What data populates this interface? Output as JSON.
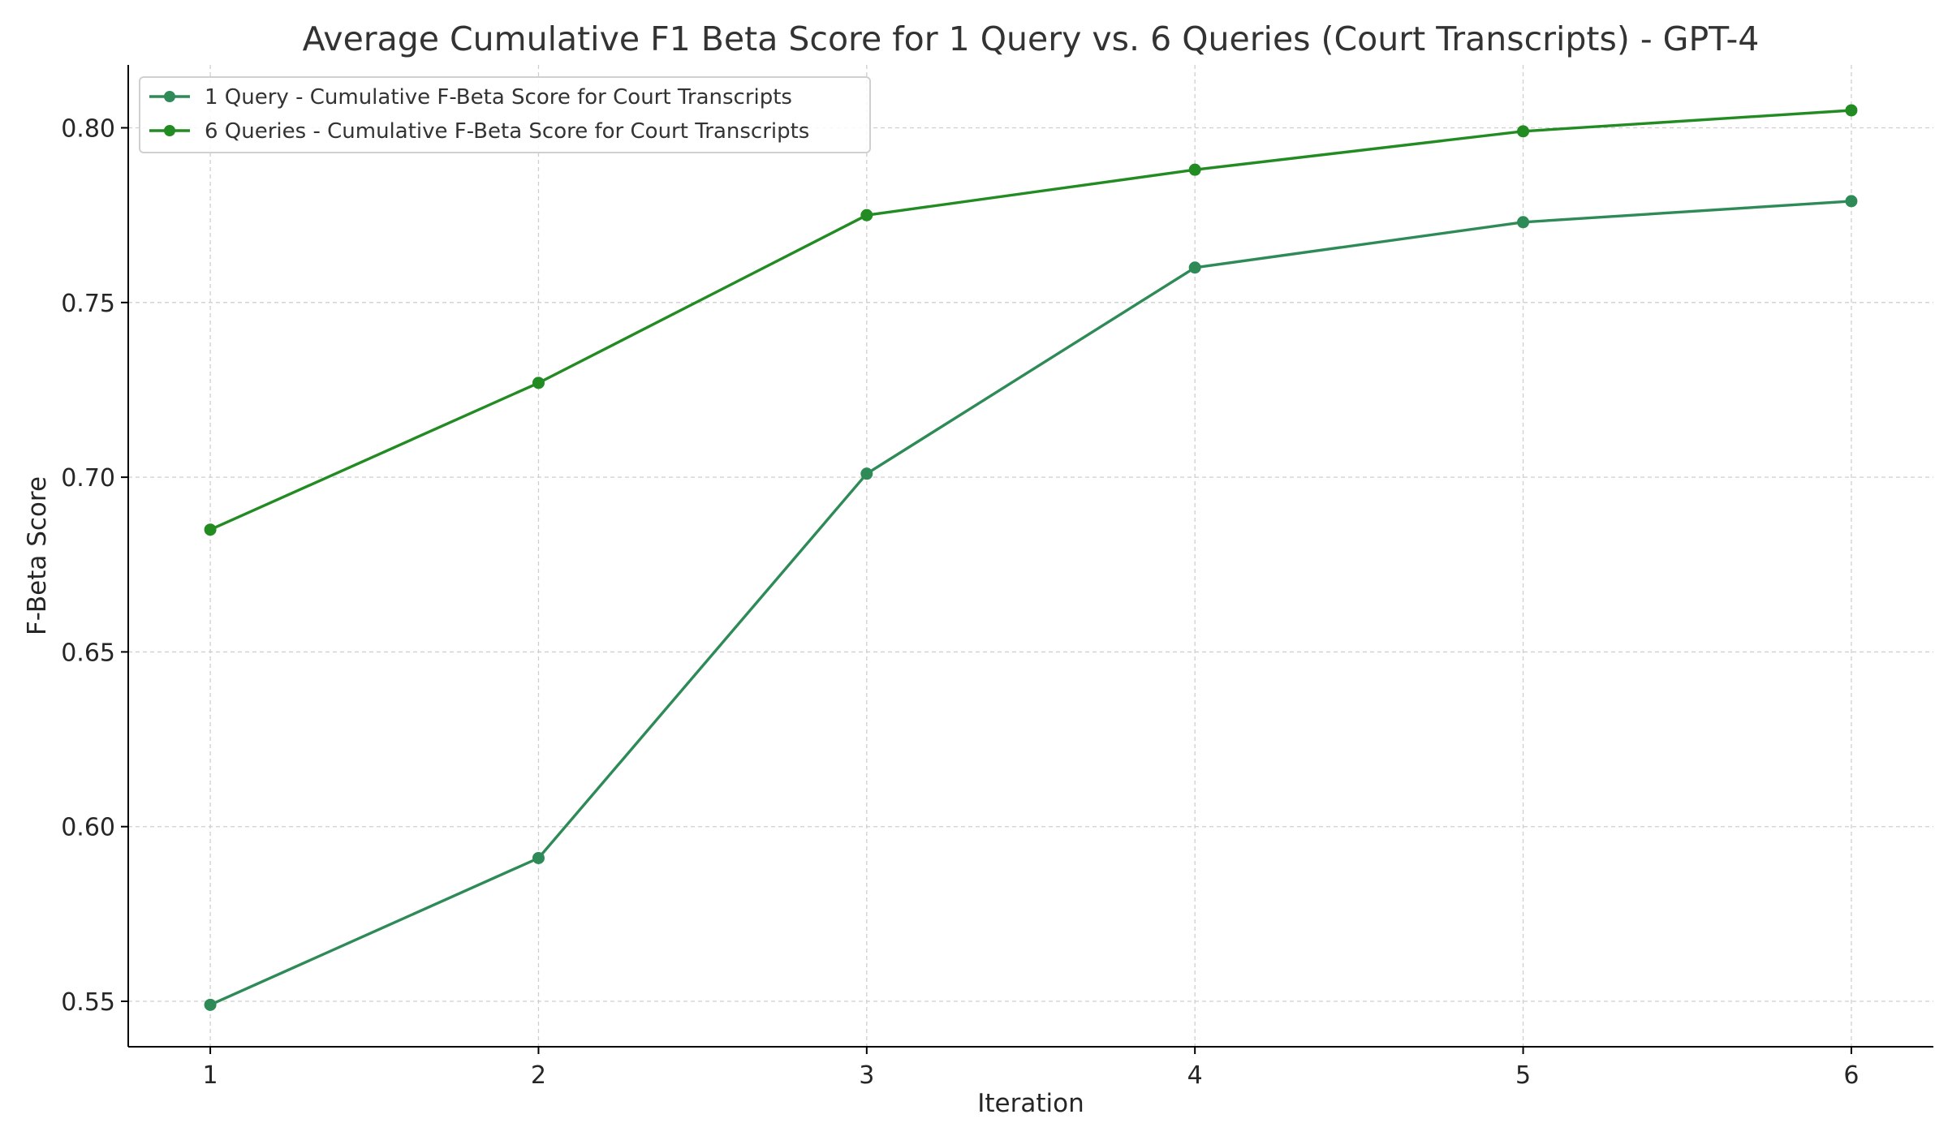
{
  "chart_data": {
    "type": "line",
    "title": "Average Cumulative F1 Beta Score for 1 Query vs. 6 Queries (Court Transcripts) - GPT-4",
    "xlabel": "Iteration",
    "ylabel": "F-Beta Score",
    "x": [
      1,
      2,
      3,
      4,
      5,
      6
    ],
    "xlim": [
      0.75,
      6.25
    ],
    "ylim": [
      0.537,
      0.818
    ],
    "x_ticks": [
      1,
      2,
      3,
      4,
      5,
      6
    ],
    "y_ticks": [
      0.55,
      0.6,
      0.65,
      0.7,
      0.75,
      0.8
    ],
    "y_tick_labels": [
      "0.55",
      "0.60",
      "0.65",
      "0.70",
      "0.75",
      "0.80"
    ],
    "grid": true,
    "legend_position": "top-left",
    "series": [
      {
        "name": "1 Query - Cumulative F-Beta Score for Court Transcripts",
        "color": "#2e8b57",
        "values": [
          0.549,
          0.591,
          0.701,
          0.76,
          0.773,
          0.779
        ]
      },
      {
        "name": "6 Queries - Cumulative F-Beta Score for Court Transcripts",
        "color": "#228b22",
        "values": [
          0.685,
          0.727,
          0.775,
          0.788,
          0.799,
          0.805
        ]
      }
    ]
  }
}
